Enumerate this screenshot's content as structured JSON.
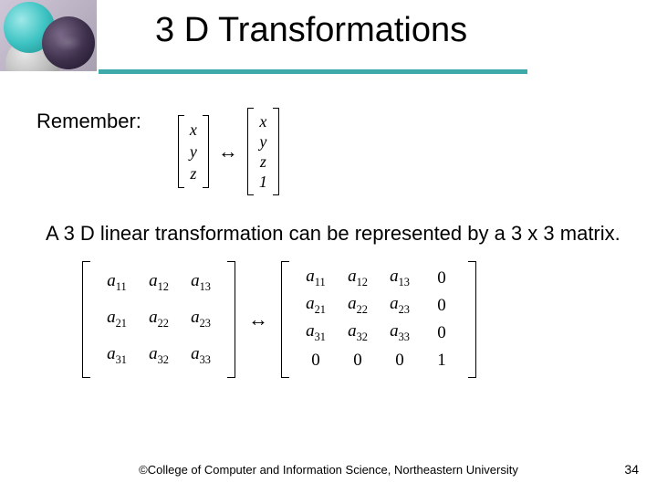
{
  "title": "3 D Transformations",
  "remember_label": "Remember:",
  "arrow_symbol": "↔",
  "vec3_entries": [
    "x",
    "y",
    "z"
  ],
  "vec4_entries": [
    "x",
    "y",
    "z",
    "1"
  ],
  "paragraph": "A 3 D linear transformation can be represented by a 3 x 3 matrix.",
  "mat3": {
    "rows": 3,
    "cols": 3,
    "cells": [
      [
        "a",
        "11"
      ],
      [
        "a",
        "12"
      ],
      [
        "a",
        "13"
      ],
      [
        "a",
        "21"
      ],
      [
        "a",
        "22"
      ],
      [
        "a",
        "23"
      ],
      [
        "a",
        "31"
      ],
      [
        "a",
        "32"
      ],
      [
        "a",
        "33"
      ]
    ]
  },
  "mat4": {
    "rows": 4,
    "cols": 4,
    "cells": [
      [
        "a",
        "11"
      ],
      [
        "a",
        "12"
      ],
      [
        "a",
        "13"
      ],
      [
        "0",
        ""
      ],
      [
        "a",
        "21"
      ],
      [
        "a",
        "22"
      ],
      [
        "a",
        "23"
      ],
      [
        "0",
        ""
      ],
      [
        "a",
        "31"
      ],
      [
        "a",
        "32"
      ],
      [
        "a",
        "33"
      ],
      [
        "0",
        ""
      ],
      [
        "0",
        ""
      ],
      [
        "0",
        ""
      ],
      [
        "0",
        ""
      ],
      [
        "1",
        ""
      ]
    ]
  },
  "footer_text": "©College of Computer and Information Science, Northeastern University",
  "page_number": "34",
  "colors": {
    "rule": "#3da9a9",
    "background": "#ffffff",
    "text": "#000000"
  }
}
